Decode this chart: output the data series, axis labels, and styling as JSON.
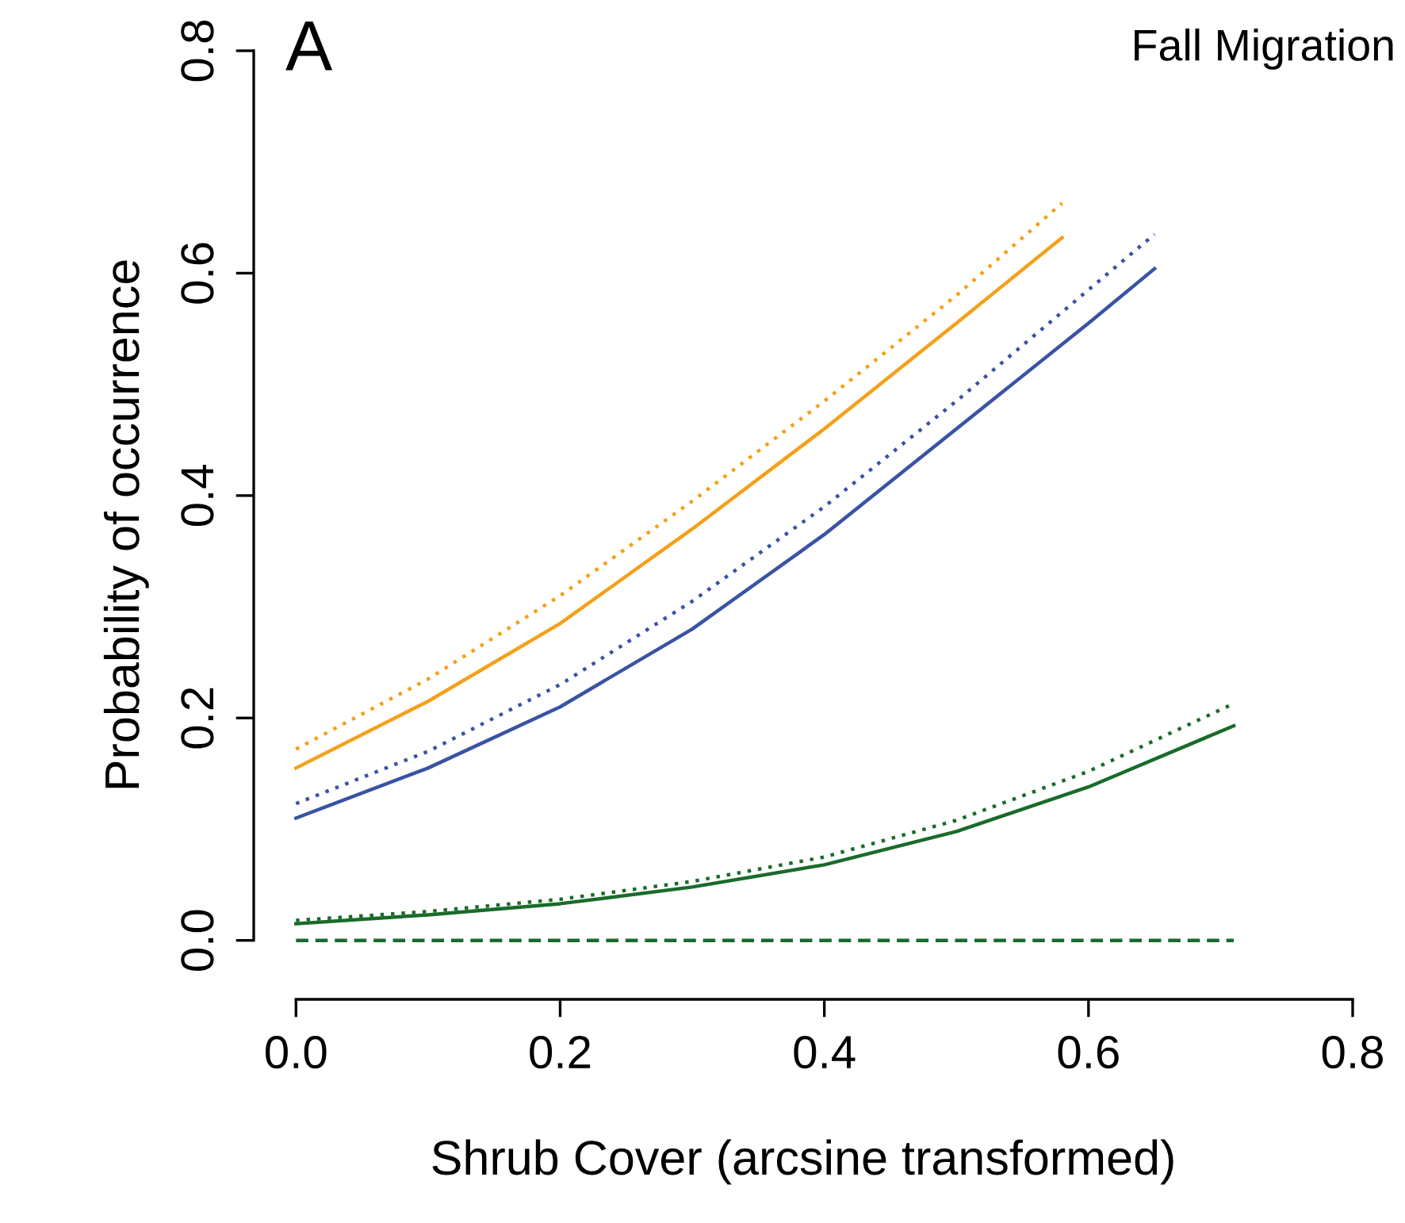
{
  "chart_data": {
    "type": "line",
    "xlabel": "Shrub Cover (arcsine transformed)",
    "ylabel": "Probability of occurrence",
    "annotations": [
      "A",
      "Fall Migration"
    ],
    "xlim": [
      -0.032,
      0.8
    ],
    "ylim": [
      -0.053,
      0.8
    ],
    "xticks": [
      {
        "value": 0,
        "label": "0.0"
      },
      0.2,
      0.4,
      0.6,
      0.8
    ],
    "yticks": [
      {
        "value": 0,
        "label": "0.0"
      },
      0.2,
      0.4,
      0.6,
      0.8
    ],
    "grid": false,
    "legend": false,
    "series": [
      {
        "color": "#f5a01a",
        "line_style": "dotted",
        "x": [
          0,
          0.1,
          0.2,
          0.3,
          0.4,
          0.5,
          0.58
        ],
        "values": [
          0.172,
          0.235,
          0.31,
          0.395,
          0.485,
          0.58,
          0.663
        ]
      },
      {
        "color": "#f5a01a",
        "line_style": "solid",
        "x": [
          0,
          0.1,
          0.2,
          0.3,
          0.4,
          0.5,
          0.58
        ],
        "values": [
          0.155,
          0.215,
          0.285,
          0.37,
          0.46,
          0.555,
          0.632
        ]
      },
      {
        "color": "#3953a4",
        "line_style": "dotted",
        "x": [
          0,
          0.1,
          0.2,
          0.3,
          0.4,
          0.5,
          0.6,
          0.65
        ],
        "values": [
          0.123,
          0.17,
          0.23,
          0.305,
          0.39,
          0.485,
          0.585,
          0.635
        ]
      },
      {
        "color": "#3953a4",
        "line_style": "solid",
        "x": [
          0,
          0.1,
          0.2,
          0.3,
          0.4,
          0.5,
          0.6,
          0.65
        ],
        "values": [
          0.11,
          0.155,
          0.21,
          0.28,
          0.365,
          0.46,
          0.555,
          0.604
        ]
      },
      {
        "color": "#1a6b2a",
        "line_style": "dotted",
        "x": [
          0,
          0.1,
          0.2,
          0.3,
          0.4,
          0.5,
          0.6,
          0.71
        ],
        "values": [
          0.018,
          0.026,
          0.037,
          0.053,
          0.075,
          0.108,
          0.152,
          0.213
        ]
      },
      {
        "color": "#1a6b2a",
        "line_style": "solid",
        "x": [
          0,
          0.1,
          0.2,
          0.3,
          0.4,
          0.5,
          0.6,
          0.71
        ],
        "values": [
          0.015,
          0.023,
          0.033,
          0.048,
          0.068,
          0.098,
          0.138,
          0.193
        ]
      },
      {
        "color": "#1a6b2a",
        "line_style": "dashed",
        "x": [
          0,
          0.71
        ],
        "values": [
          0,
          0
        ]
      }
    ]
  }
}
